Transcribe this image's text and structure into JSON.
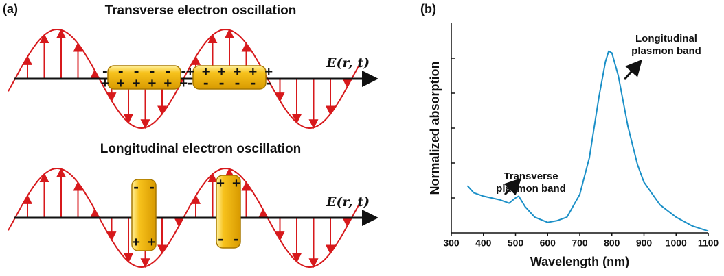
{
  "panel_a": {
    "label": "(a)",
    "transverse": {
      "title": "Transverse electron oscillation",
      "field": "E(r, t)",
      "rod1": {
        "top": "- - - - - -",
        "bottom": "+ + + + + +"
      },
      "rod2": {
        "top": "+ + + + + +",
        "bottom": "- - - - - -"
      }
    },
    "longitudinal": {
      "title": "Longitudinal electron oscillation",
      "field": "E(r, t)",
      "rod1": {
        "top": "- -",
        "bottom": "+ +"
      },
      "rod2": {
        "top": "+ +",
        "bottom": "- -"
      }
    }
  },
  "chart_data": {
    "type": "line",
    "panel": "(b)",
    "xlabel": "Wavelength (nm)",
    "ylabel": "Normalized absorption",
    "x": [
      350,
      370,
      400,
      450,
      480,
      500,
      510,
      530,
      560,
      600,
      630,
      660,
      700,
      730,
      760,
      780,
      790,
      800,
      820,
      850,
      880,
      900,
      950,
      1000,
      1050,
      1100
    ],
    "values": [
      0.27,
      0.23,
      0.21,
      0.19,
      0.17,
      0.2,
      0.21,
      0.15,
      0.09,
      0.06,
      0.07,
      0.09,
      0.22,
      0.43,
      0.78,
      0.98,
      1.04,
      1.03,
      0.9,
      0.61,
      0.39,
      0.29,
      0.16,
      0.09,
      0.04,
      0.01
    ],
    "color": "#1a8fc7",
    "xlim": [
      300,
      1100
    ],
    "xticks": [
      300,
      400,
      500,
      600,
      700,
      800,
      900,
      1000,
      1100
    ],
    "ylim": [
      0,
      1.2
    ],
    "yticks": [
      0.2,
      0.4,
      0.6,
      0.8,
      1.0
    ],
    "annotations": [
      {
        "lines": [
          "Longitudinal",
          "plasmon band"
        ]
      },
      {
        "lines": [
          "Transverse",
          "plasmon band"
        ]
      }
    ]
  }
}
